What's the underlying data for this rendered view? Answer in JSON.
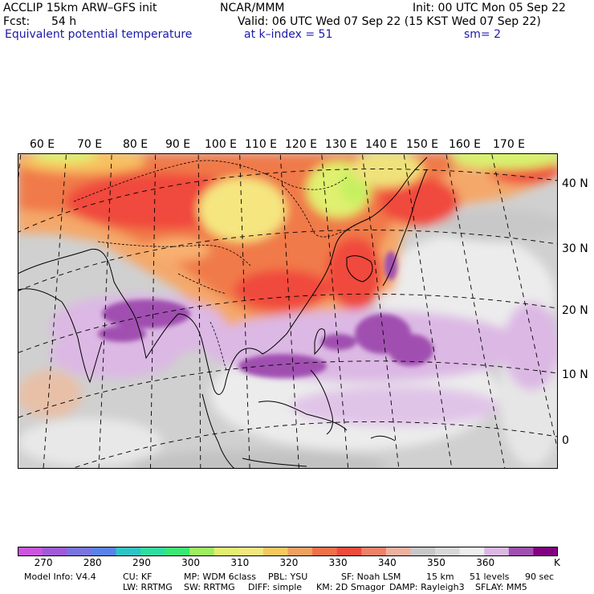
{
  "header": {
    "model": "ACCLIP 15km ARW–GFS init",
    "center": "NCAR/MMM",
    "init": "Init: 00 UTC Mon 05 Sep 22",
    "fcst_label": "Fcst:",
    "fcst_value": "54 h",
    "valid": "Valid: 06 UTC Wed 07 Sep 22 (15 KST Wed 07 Sep 22)",
    "field": "Equivalent potential temperature",
    "level": "at k–index =  51",
    "smooth": "sm= 2"
  },
  "map": {
    "lon_labels": [
      "60 E",
      "70 E",
      "80 E",
      "90 E",
      "100 E",
      "110 E",
      "120 E",
      "130 E",
      "140 E",
      "150 E",
      "160 E",
      "170 E"
    ],
    "lat_labels": [
      "40 N",
      "30 N",
      "20 N",
      "10 N",
      "0"
    ]
  },
  "colorbar": {
    "colors": [
      "#cc55dd",
      "#a05ad8",
      "#7a74e0",
      "#5a82e8",
      "#2ec4c4",
      "#30dca0",
      "#3ae874",
      "#9cf060",
      "#e0f070",
      "#f5e680",
      "#f8c860",
      "#f0a060",
      "#f07048",
      "#f04a3c",
      "#f08068",
      "#f0b0a0",
      "#c8c8c8",
      "#d8d8d8",
      "#efefef",
      "#dcb8e4",
      "#a050b0",
      "#800080"
    ],
    "labels": [
      "270",
      "280",
      "290",
      "300",
      "310",
      "320",
      "330",
      "340",
      "350",
      "360"
    ],
    "unit": "K"
  },
  "model_info": {
    "line1": [
      "Model Info: V4.4",
      "CU: KF",
      "MP: WDM 6class",
      "PBL: YSU",
      "SF: Noah LSM",
      "15 km",
      "51 levels",
      "90 sec"
    ],
    "line2": [
      "LW: RRTMG",
      "SW: RRTMG",
      "DIFF: simple",
      "KM: 2D Smagor",
      "DAMP: Rayleigh3",
      "SFLAY: MM5"
    ]
  }
}
